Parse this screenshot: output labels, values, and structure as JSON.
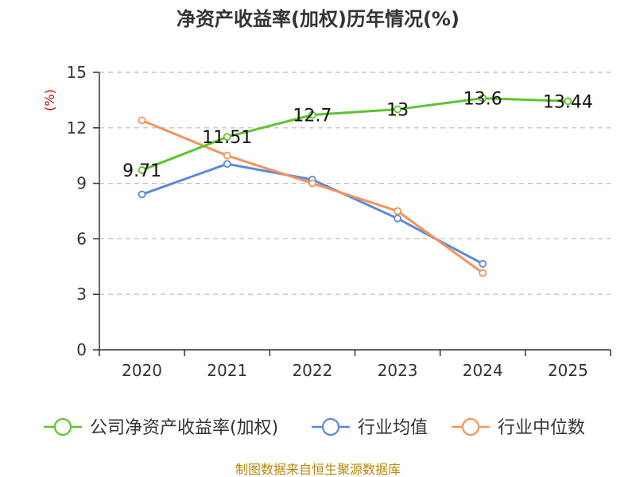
{
  "chart_data": {
    "type": "line",
    "title": "净资产收益率(加权)历年情况(%)",
    "ylabel": "(%)",
    "xlabel": "",
    "categories": [
      "2020",
      "2021",
      "2022",
      "2023",
      "2024",
      "2025"
    ],
    "ylim": [
      0,
      15
    ],
    "yticks": [
      0,
      3,
      6,
      9,
      12,
      15
    ],
    "grid": true,
    "legend_position": "bottom",
    "series": [
      {
        "name": "公司净资产收益率(加权)",
        "color": "#5cc42b",
        "values": [
          9.71,
          11.51,
          12.7,
          13,
          13.6,
          13.44
        ],
        "labels": [
          "9.71",
          "11.51",
          "12.7",
          "13",
          "13.6",
          "13.44"
        ]
      },
      {
        "name": "行业均值",
        "color": "#5b8ad9",
        "values": [
          8.4,
          10.05,
          9.2,
          7.1,
          4.65,
          null
        ]
      },
      {
        "name": "行业中位数",
        "color": "#f5925a",
        "values": [
          12.4,
          10.5,
          9.0,
          7.5,
          4.15,
          null
        ]
      }
    ],
    "source": "制图数据来自恒生聚源数据库"
  }
}
